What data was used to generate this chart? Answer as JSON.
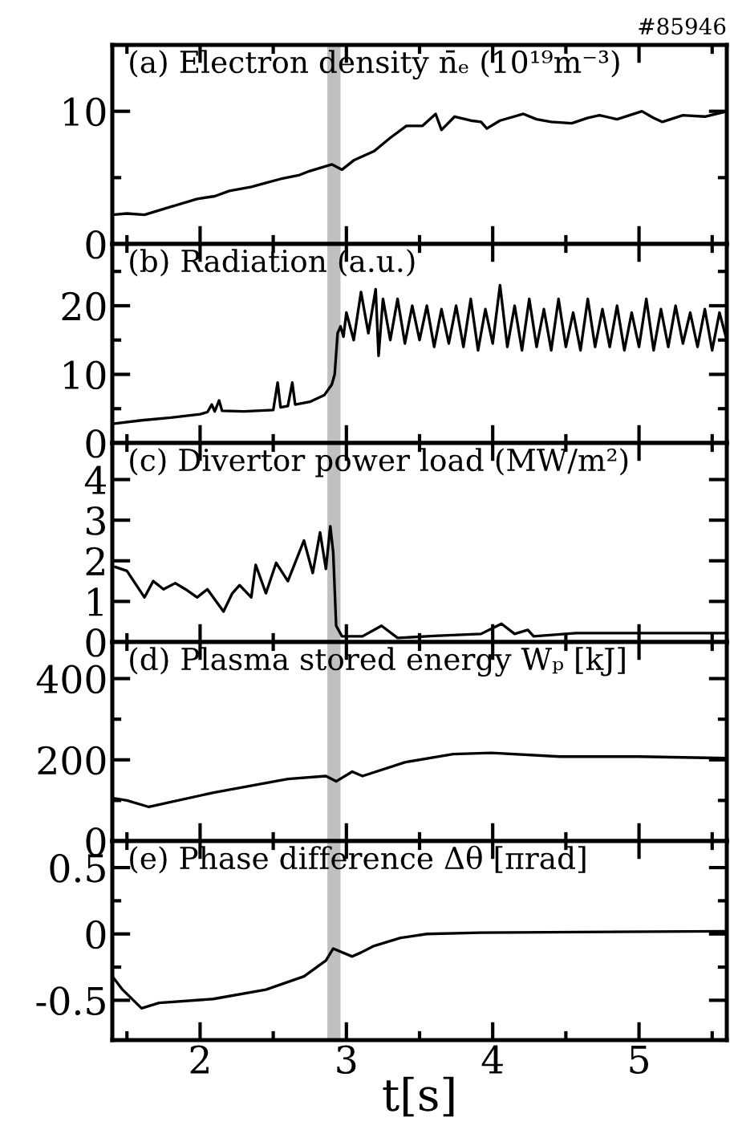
{
  "chart_data": [
    {
      "type": "line",
      "title": "(a) Electron density n̄ₑ (10¹⁹m⁻³)",
      "annotations": [
        "#85946"
      ],
      "x": [
        1.4,
        1.5,
        1.62,
        1.8,
        1.98,
        2.1,
        2.2,
        2.35,
        2.45,
        2.55,
        2.68,
        2.75,
        2.9,
        2.97,
        3.05,
        3.19,
        3.3,
        3.41,
        3.52,
        3.61,
        3.65,
        3.74,
        3.85,
        3.92,
        3.96,
        4.05,
        4.21,
        4.3,
        4.4,
        4.54,
        4.65,
        4.73,
        4.85,
        5.02,
        5.1,
        5.16,
        5.3,
        5.45,
        5.6
      ],
      "series": [
        {
          "color": "#000000",
          "values": [
            2.2,
            2.3,
            2.2,
            2.8,
            3.4,
            3.6,
            4.0,
            4.3,
            4.6,
            4.9,
            5.2,
            5.5,
            6.0,
            5.6,
            6.3,
            7.0,
            8.0,
            8.9,
            8.9,
            9.8,
            8.6,
            9.6,
            9.3,
            9.2,
            8.7,
            9.3,
            9.8,
            9.4,
            9.2,
            9.1,
            9.5,
            9.7,
            9.4,
            10.0,
            9.5,
            9.2,
            9.7,
            9.6,
            10.0
          ]
        }
      ],
      "xlim": [
        1.4,
        5.6
      ],
      "xticks": [
        2,
        3,
        4,
        5,
        {
          "value": 1.5,
          "label": null
        },
        {
          "value": 2.5,
          "label": null
        },
        {
          "value": 3.5,
          "label": null
        },
        {
          "value": 4.5,
          "label": null
        },
        {
          "value": 5.5,
          "label": null
        }
      ],
      "ylim": [
        0,
        15
      ],
      "yticks": [
        0,
        10,
        {
          "value": 5,
          "label": null
        }
      ],
      "bands": [
        {
          "axis": "x",
          "from": 2.87,
          "to": 2.96,
          "color": "#c0c0c0"
        }
      ],
      "tick_labels": "y"
    },
    {
      "type": "line",
      "title": "(b) Radiation (a.u.)",
      "x": [
        1.4,
        1.6,
        1.8,
        2.0,
        2.05,
        2.08,
        2.1,
        2.13,
        2.15,
        2.3,
        2.5,
        2.53,
        2.55,
        2.6,
        2.63,
        2.65,
        2.75,
        2.85,
        2.9,
        2.92,
        2.94,
        2.96,
        2.98,
        3.0,
        3.05,
        3.1,
        3.15,
        3.2,
        3.22,
        3.25,
        3.3,
        3.35,
        3.4,
        3.45,
        3.5,
        3.55,
        3.6,
        3.65,
        3.7,
        3.75,
        3.8,
        3.85,
        3.9,
        3.95,
        4.0,
        4.05,
        4.1,
        4.15,
        4.2,
        4.25,
        4.3,
        4.35,
        4.4,
        4.45,
        4.5,
        4.55,
        4.6,
        4.65,
        4.7,
        4.75,
        4.8,
        4.85,
        4.9,
        4.95,
        5.0,
        5.05,
        5.1,
        5.15,
        5.2,
        5.25,
        5.3,
        5.35,
        5.4,
        5.45,
        5.5,
        5.55,
        5.6
      ],
      "series": [
        {
          "color": "#000000",
          "values": [
            2.8,
            3.3,
            3.7,
            4.2,
            4.5,
            5.6,
            4.6,
            6.2,
            4.7,
            4.6,
            4.8,
            8.8,
            5.2,
            5.4,
            8.8,
            5.6,
            6.0,
            7.0,
            8.5,
            10,
            16,
            17,
            15.5,
            19,
            15,
            22,
            16,
            22.4,
            12.7,
            21,
            15,
            21,
            14.5,
            20,
            15,
            20,
            14,
            19.5,
            14.5,
            20,
            14,
            21,
            13.5,
            19.5,
            14.5,
            23,
            14,
            20,
            13.5,
            21,
            14,
            19.5,
            13.5,
            21,
            14,
            19,
            13.5,
            21,
            14,
            19.5,
            14,
            20,
            13.5,
            19,
            14,
            21,
            13.5,
            19.5,
            14,
            20,
            14.5,
            19,
            14,
            19.5,
            13.5,
            19,
            15
          ]
        }
      ],
      "xlim": [
        1.4,
        5.6
      ],
      "xticks": [
        2,
        3,
        4,
        5,
        {
          "value": 1.5,
          "label": null
        },
        {
          "value": 2.5,
          "label": null
        },
        {
          "value": 3.5,
          "label": null
        },
        {
          "value": 4.5,
          "label": null
        },
        {
          "value": 5.5,
          "label": null
        }
      ],
      "ylim": [
        0,
        29
      ],
      "yticks": [
        0,
        10,
        20,
        {
          "value": 5,
          "label": null
        },
        {
          "value": 15,
          "label": null
        },
        {
          "value": 25,
          "label": null
        }
      ],
      "bands": [
        {
          "axis": "x",
          "from": 2.87,
          "to": 2.96,
          "color": "#c0c0c0"
        }
      ],
      "tick_labels": "y"
    },
    {
      "type": "line",
      "title": "(c) Divertor power load (MW/m²)",
      "x": [
        1.42,
        1.5,
        1.62,
        1.68,
        1.75,
        1.83,
        1.9,
        1.98,
        2.05,
        2.16,
        2.22,
        2.27,
        2.35,
        2.38,
        2.45,
        2.52,
        2.6,
        2.71,
        2.77,
        2.82,
        2.86,
        2.89,
        2.91,
        2.93,
        2.97,
        3.11,
        3.24,
        3.35,
        3.6,
        3.92,
        4.06,
        4.15,
        4.24,
        4.28,
        4.57,
        5.6
      ],
      "series": [
        {
          "color": "#000000",
          "values": [
            1.85,
            1.75,
            1.1,
            1.5,
            1.3,
            1.45,
            1.3,
            1.1,
            1.3,
            0.75,
            1.2,
            1.4,
            1.1,
            1.9,
            1.2,
            1.95,
            1.5,
            2.5,
            1.7,
            2.7,
            1.8,
            2.85,
            2.2,
            0.4,
            0.14,
            0.14,
            0.4,
            0.1,
            0.15,
            0.2,
            0.45,
            0.2,
            0.3,
            0.14,
            0.22,
            0.22
          ]
        }
      ],
      "xlim": [
        1.4,
        5.6
      ],
      "xticks": [
        2,
        3,
        4,
        5,
        {
          "value": 1.5,
          "label": null
        },
        {
          "value": 2.5,
          "label": null
        },
        {
          "value": 3.5,
          "label": null
        },
        {
          "value": 4.5,
          "label": null
        },
        {
          "value": 5.5,
          "label": null
        }
      ],
      "ylim": [
        0,
        4.9
      ],
      "yticks": [
        0,
        1,
        2,
        3,
        4
      ],
      "bands": [
        {
          "axis": "x",
          "from": 2.87,
          "to": 2.96,
          "color": "#c0c0c0"
        }
      ],
      "tick_labels": "y"
    },
    {
      "type": "line",
      "title": "(d) Plasma stored energy Wₚ [kJ]",
      "x": [
        1.4,
        1.5,
        1.65,
        2.1,
        2.6,
        2.86,
        2.93,
        3.04,
        3.11,
        3.4,
        3.73,
        3.99,
        4.46,
        5.0,
        5.6
      ],
      "series": [
        {
          "color": "#000000",
          "values": [
            106,
            100,
            84,
            120,
            153,
            160,
            147,
            171,
            160,
            194,
            214,
            217,
            208,
            208,
            204
          ]
        }
      ],
      "xlim": [
        1.4,
        5.6
      ],
      "xticks": [
        2,
        3,
        4,
        5,
        {
          "value": 1.5,
          "label": null
        },
        {
          "value": 2.5,
          "label": null
        },
        {
          "value": 3.5,
          "label": null
        },
        {
          "value": 4.5,
          "label": null
        },
        {
          "value": 5.5,
          "label": null
        }
      ],
      "ylim": [
        0,
        490
      ],
      "yticks": [
        0,
        200,
        400,
        {
          "value": 100,
          "label": null
        },
        {
          "value": 300,
          "label": null
        }
      ],
      "bands": [
        {
          "axis": "x",
          "from": 2.87,
          "to": 2.96,
          "color": "#c0c0c0"
        }
      ],
      "tick_labels": "y"
    },
    {
      "type": "line",
      "title": "(e) Phase difference Δθ [πrad]",
      "xlabel": "t[s]",
      "x": [
        1.4,
        1.47,
        1.6,
        1.72,
        2.09,
        2.45,
        2.71,
        2.86,
        2.91,
        3.04,
        3.1,
        3.19,
        3.37,
        3.55,
        3.92,
        5.6
      ],
      "series": [
        {
          "color": "#000000",
          "values": [
            -0.32,
            -0.42,
            -0.56,
            -0.52,
            -0.49,
            -0.42,
            -0.32,
            -0.2,
            -0.11,
            -0.17,
            -0.14,
            -0.09,
            -0.03,
            0.0,
            0.01,
            0.02
          ]
        }
      ],
      "xlim": [
        1.4,
        5.6
      ],
      "xticks": [
        2,
        3,
        4,
        5,
        {
          "value": 1.5,
          "label": null
        },
        {
          "value": 2.5,
          "label": null
        },
        {
          "value": 3.5,
          "label": null
        },
        {
          "value": 4.5,
          "label": null
        },
        {
          "value": 5.5,
          "label": null
        }
      ],
      "ylim": [
        -0.8,
        0.7
      ],
      "yticks": [
        -0.5,
        0,
        0.5,
        {
          "value": -0.25,
          "label": null
        },
        {
          "value": 0.25,
          "label": null
        }
      ],
      "bands": [
        {
          "axis": "x",
          "from": 2.87,
          "to": 2.96,
          "color": "#c0c0c0"
        }
      ]
    }
  ]
}
